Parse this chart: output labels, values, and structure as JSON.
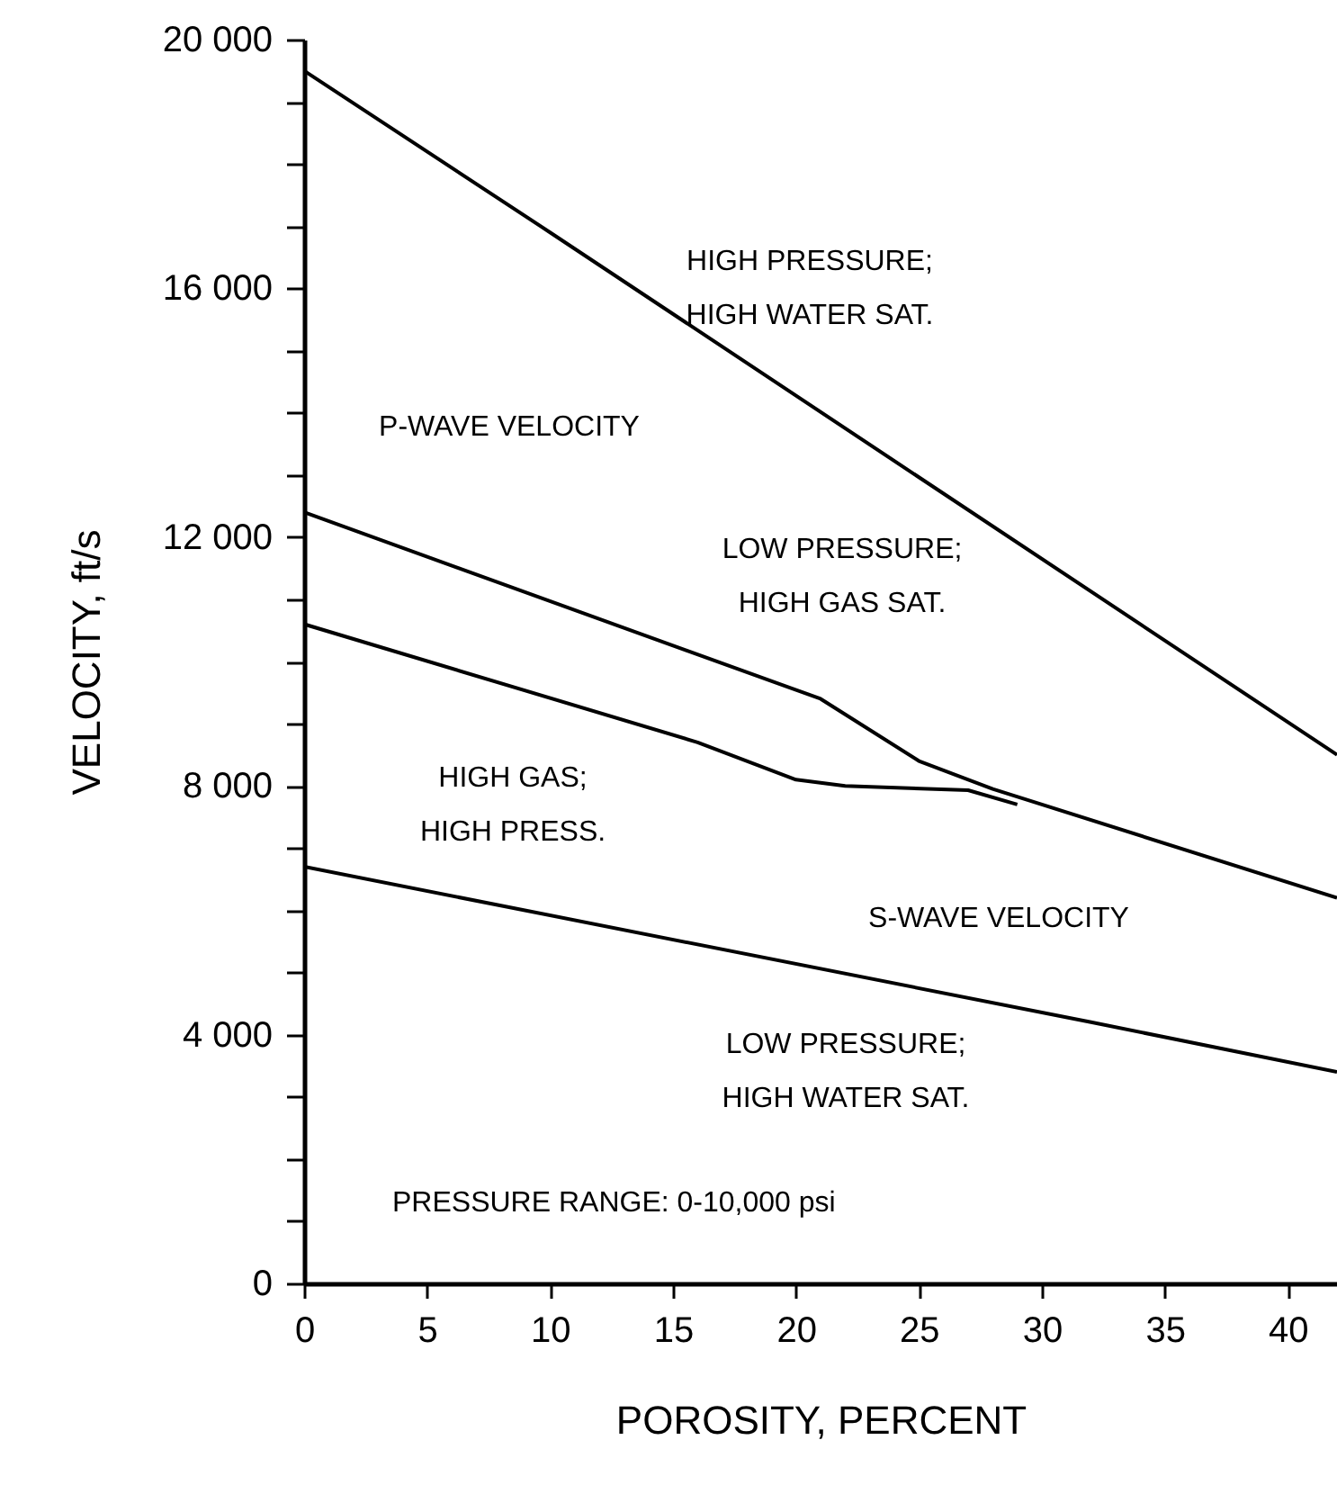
{
  "chart_data": {
    "type": "line",
    "xlabel": "POROSITY, PERCENT",
    "ylabel": "VELOCITY, ft/s",
    "xlim": [
      0,
      42
    ],
    "xticks": [
      0,
      5,
      10,
      15,
      20,
      25,
      30,
      35,
      40
    ],
    "ylim": [
      0,
      20000
    ],
    "yticks": [
      {
        "value": 0,
        "label": "0"
      },
      {
        "value": 1000,
        "label": null
      },
      {
        "value": 2000,
        "label": null
      },
      {
        "value": 3000,
        "label": null
      },
      {
        "value": 4000,
        "label": "4 000"
      },
      {
        "value": 5000,
        "label": null
      },
      {
        "value": 6000,
        "label": null
      },
      {
        "value": 7000,
        "label": null
      },
      {
        "value": 8000,
        "label": "8 000"
      },
      {
        "value": 9000,
        "label": null
      },
      {
        "value": 10000,
        "label": null
      },
      {
        "value": 11000,
        "label": null
      },
      {
        "value": 12000,
        "label": "12 000"
      },
      {
        "value": 13000,
        "label": null
      },
      {
        "value": 14000,
        "label": null
      },
      {
        "value": 15000,
        "label": null
      },
      {
        "value": 16000,
        "label": "16 000"
      },
      {
        "value": 17000,
        "label": null
      },
      {
        "value": 18000,
        "label": null
      },
      {
        "value": 19000,
        "label": null
      },
      {
        "value": 20000,
        "label": "20 000"
      }
    ],
    "grid": false,
    "marker": "none",
    "line_style": "solid",
    "series": [
      {
        "color": "#000000",
        "x": [
          0,
          10,
          42
        ],
        "values": [
          19500,
          16900,
          8500
        ]
      },
      {
        "color": "#000000",
        "x": [
          0,
          21,
          25,
          28,
          42
        ],
        "values": [
          12400,
          9400,
          8400,
          7950,
          6200
        ]
      },
      {
        "color": "#000000",
        "x": [
          0,
          16,
          20,
          22,
          27,
          29
        ],
        "values": [
          10600,
          8700,
          8100,
          8000,
          7930,
          7700
        ]
      },
      {
        "color": "#000000",
        "x": [
          0,
          32,
          42
        ],
        "values": [
          6700,
          4200,
          3400
        ]
      }
    ],
    "annotations": [
      "HIGH PRESSURE;\nHIGH WATER SAT.",
      "P-WAVE VELOCITY",
      "LOW PRESSURE;\nHIGH GAS SAT.",
      "HIGH GAS;\nHIGH PRESS.",
      "S-WAVE VELOCITY",
      "LOW PRESSURE;\nHIGH WATER SAT.",
      "PRESSURE RANGE: 0-10,000 psi"
    ]
  }
}
